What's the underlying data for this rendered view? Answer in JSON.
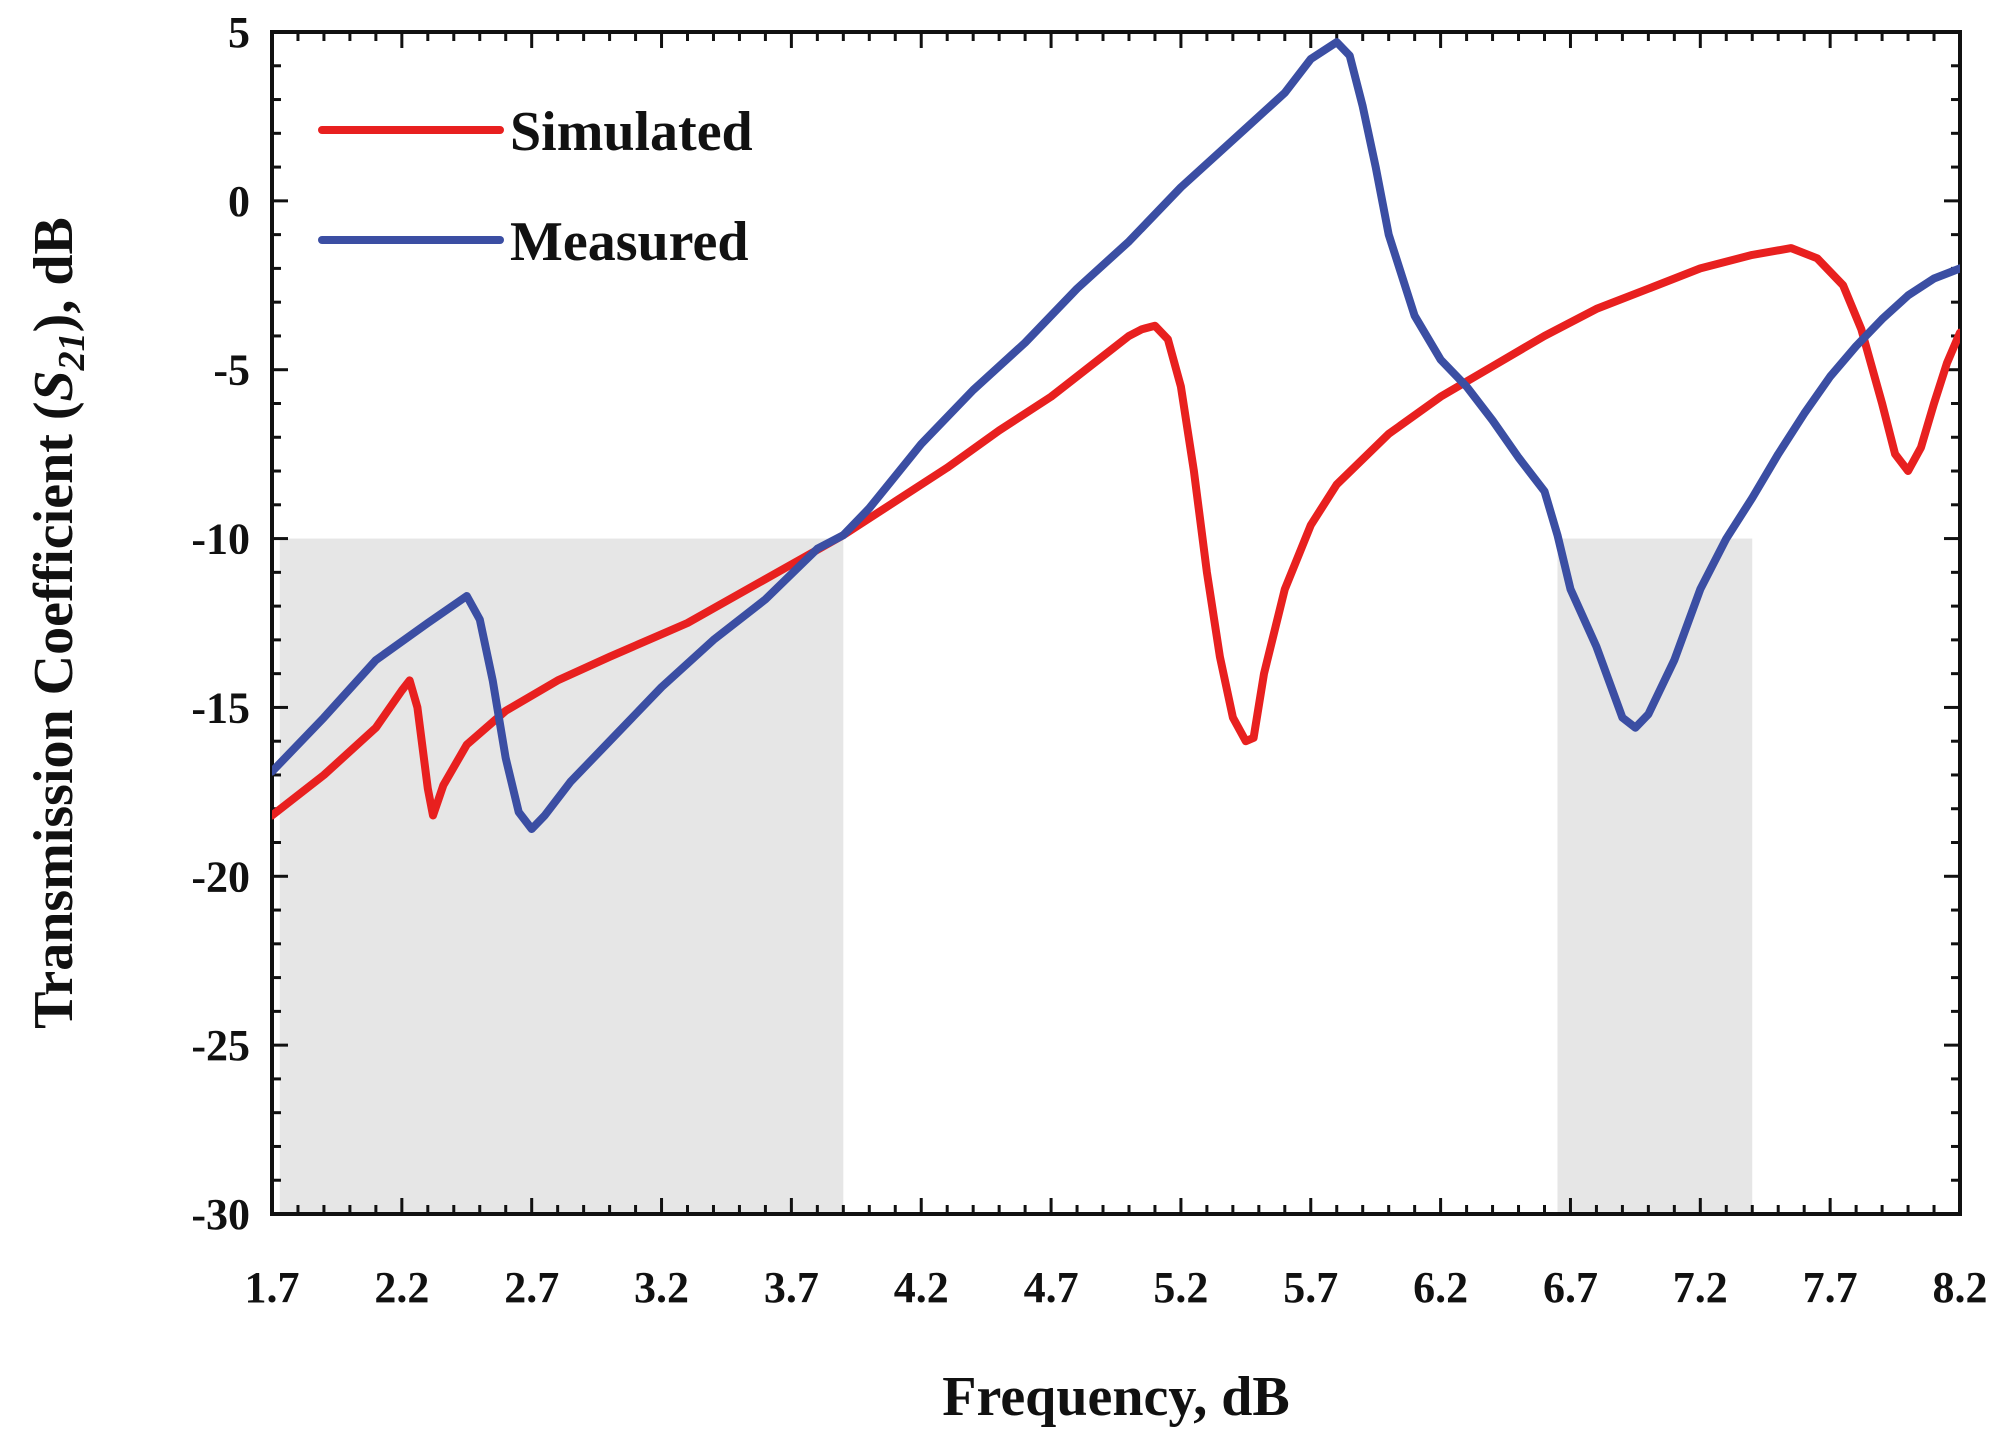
{
  "chart_data": {
    "type": "line",
    "xlabel": "Frequency, dB",
    "ylabel": {
      "prefix": "Transmission Coefficient (",
      "symbol": "S",
      "subscript": "21",
      "suffix": "), dB"
    },
    "xlim": [
      1.7,
      8.2
    ],
    "ylim": [
      -30,
      5
    ],
    "x_ticks": [
      "1.7",
      "2.2",
      "2.7",
      "3.2",
      "3.7",
      "4.2",
      "4.7",
      "5.2",
      "5.7",
      "6.2",
      "6.7",
      "7.2",
      "7.7",
      "8.2"
    ],
    "y_ticks": [
      "5",
      "0",
      "-5",
      "-10",
      "-15",
      "-20",
      "-25",
      "-30"
    ],
    "grid": false,
    "legend_position": "top-left",
    "shaded_bands": [
      {
        "x_start": 1.73,
        "x_end": 3.9,
        "y_top": -10,
        "color": "#e6e6e6"
      },
      {
        "x_start": 6.65,
        "x_end": 7.4,
        "y_top": -10,
        "color": "#e6e6e6"
      }
    ],
    "series": [
      {
        "name": "Simulated",
        "color": "#e8201f",
        "x": [
          1.7,
          1.9,
          2.1,
          2.2,
          2.23,
          2.26,
          2.3,
          2.32,
          2.36,
          2.45,
          2.6,
          2.8,
          3.0,
          3.3,
          3.6,
          3.9,
          4.1,
          4.3,
          4.5,
          4.7,
          4.9,
          5.0,
          5.05,
          5.1,
          5.15,
          5.2,
          5.25,
          5.3,
          5.35,
          5.4,
          5.45,
          5.48,
          5.52,
          5.6,
          5.7,
          5.8,
          6.0,
          6.2,
          6.4,
          6.6,
          6.8,
          7.0,
          7.2,
          7.4,
          7.55,
          7.65,
          7.75,
          7.82,
          7.9,
          7.95,
          8.0,
          8.05,
          8.1,
          8.15,
          8.2
        ],
        "y": [
          -18.2,
          -17.0,
          -15.6,
          -14.5,
          -14.2,
          -15.0,
          -17.4,
          -18.2,
          -17.3,
          -16.1,
          -15.1,
          -14.2,
          -13.5,
          -12.5,
          -11.2,
          -9.9,
          -8.9,
          -7.9,
          -6.8,
          -5.8,
          -4.6,
          -4.0,
          -3.8,
          -3.7,
          -4.1,
          -5.5,
          -8.0,
          -11.0,
          -13.5,
          -15.3,
          -16.0,
          -15.9,
          -14.0,
          -11.5,
          -9.6,
          -8.4,
          -6.9,
          -5.8,
          -4.9,
          -4.0,
          -3.2,
          -2.6,
          -2.0,
          -1.6,
          -1.4,
          -1.7,
          -2.5,
          -3.8,
          -6.0,
          -7.5,
          -8.0,
          -7.3,
          -6.0,
          -4.8,
          -3.9
        ]
      },
      {
        "name": "Measured",
        "color": "#3b4ea3",
        "x": [
          1.7,
          1.9,
          2.1,
          2.3,
          2.45,
          2.5,
          2.55,
          2.6,
          2.65,
          2.7,
          2.75,
          2.85,
          3.0,
          3.2,
          3.4,
          3.6,
          3.8,
          3.9,
          4.0,
          4.2,
          4.4,
          4.6,
          4.8,
          5.0,
          5.2,
          5.4,
          5.6,
          5.7,
          5.8,
          5.85,
          5.9,
          5.95,
          6.0,
          6.1,
          6.2,
          6.3,
          6.4,
          6.5,
          6.6,
          6.65,
          6.7,
          6.8,
          6.9,
          6.95,
          7.0,
          7.1,
          7.2,
          7.3,
          7.4,
          7.5,
          7.6,
          7.7,
          7.8,
          7.9,
          8.0,
          8.1,
          8.2
        ],
        "y": [
          -16.9,
          -15.3,
          -13.6,
          -12.5,
          -11.7,
          -12.4,
          -14.2,
          -16.5,
          -18.1,
          -18.6,
          -18.2,
          -17.2,
          -16.0,
          -14.4,
          -13.0,
          -11.8,
          -10.3,
          -9.9,
          -9.1,
          -7.2,
          -5.6,
          -4.2,
          -2.6,
          -1.2,
          0.4,
          1.8,
          3.2,
          4.2,
          4.7,
          4.3,
          2.8,
          1.0,
          -1.0,
          -3.4,
          -4.7,
          -5.5,
          -6.5,
          -7.6,
          -8.6,
          -9.9,
          -11.5,
          -13.2,
          -15.3,
          -15.6,
          -15.2,
          -13.6,
          -11.5,
          -10.0,
          -8.8,
          -7.5,
          -6.3,
          -5.2,
          -4.3,
          -3.5,
          -2.8,
          -2.3,
          -2.0
        ]
      }
    ]
  }
}
